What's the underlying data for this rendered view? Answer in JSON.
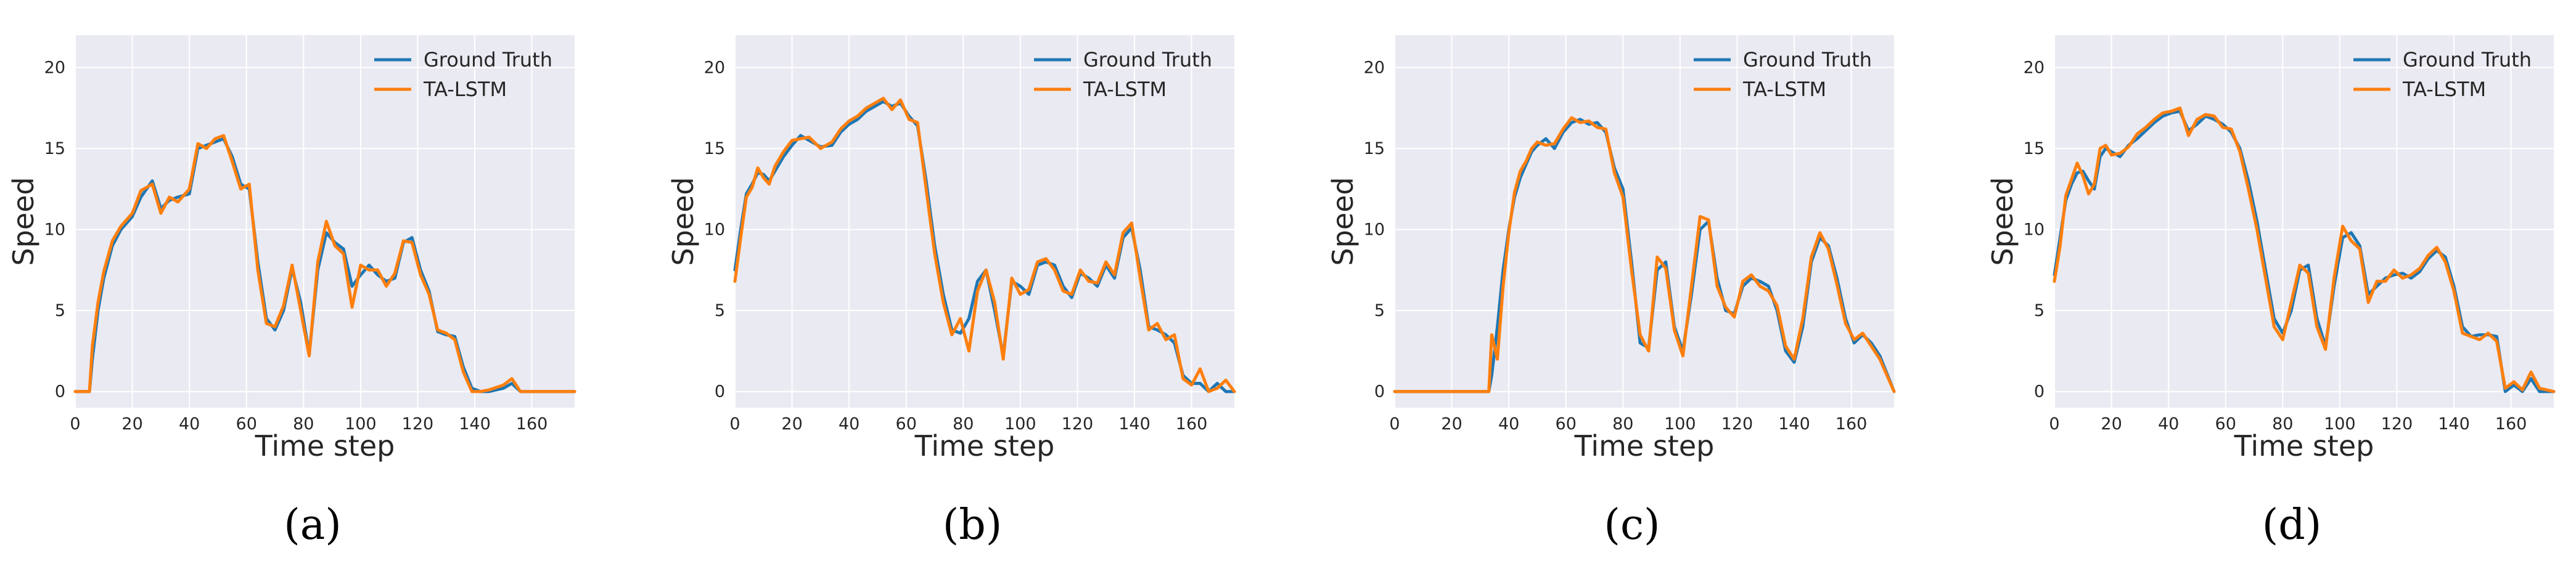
{
  "colors": {
    "ground_truth": "#1f77b4",
    "prediction": "#ff7f0e",
    "plot_bg": "#eaeaf2",
    "grid": "#ffffff"
  },
  "chart_data": [
    {
      "panel": "(a)",
      "type": "line",
      "xlabel": "Time step",
      "ylabel": "Speed",
      "xlim": [
        0,
        175
      ],
      "ylim": [
        -1,
        22
      ],
      "xticks": [
        "0",
        "20",
        "40",
        "60",
        "80",
        "100",
        "120",
        "140",
        "160"
      ],
      "yticks": [
        "0",
        "5",
        "10",
        "15",
        "20"
      ],
      "grid": true,
      "legend": "top-right",
      "series": [
        {
          "name": "Ground Truth",
          "x": [
            0,
            5,
            6,
            8,
            10,
            13,
            16,
            20,
            23,
            27,
            30,
            33,
            36,
            40,
            43,
            46,
            49,
            52,
            55,
            58,
            61,
            64,
            67,
            70,
            73,
            76,
            79,
            82,
            85,
            88,
            91,
            94,
            97,
            100,
            103,
            106,
            109,
            112,
            115,
            118,
            121,
            124,
            127,
            130,
            133,
            136,
            139,
            142,
            145,
            150,
            153,
            156,
            160,
            165,
            170,
            175
          ],
          "y": [
            0,
            0,
            2,
            5,
            7,
            9,
            10,
            10.8,
            12,
            13,
            11.3,
            11.8,
            12,
            12.2,
            15,
            15.2,
            15.4,
            15.6,
            14.5,
            12.8,
            12.5,
            8,
            4.5,
            3.8,
            5,
            7.6,
            5.5,
            2.3,
            7.5,
            9.8,
            9.2,
            8.8,
            6.5,
            7.2,
            7.8,
            7.2,
            6.8,
            7,
            9.2,
            9.5,
            7.5,
            6.2,
            3.7,
            3.5,
            3.4,
            1.5,
            0.2,
            0,
            0,
            0.2,
            0.5,
            0,
            0,
            0,
            0,
            0
          ]
        },
        {
          "name": "TA-LSTM",
          "x": [
            0,
            5,
            6,
            8,
            10,
            13,
            16,
            20,
            23,
            27,
            30,
            33,
            36,
            40,
            43,
            46,
            49,
            52,
            55,
            58,
            61,
            64,
            67,
            70,
            73,
            76,
            79,
            82,
            85,
            88,
            91,
            94,
            97,
            100,
            103,
            106,
            109,
            112,
            115,
            118,
            121,
            124,
            127,
            130,
            133,
            136,
            139,
            142,
            145,
            150,
            153,
            156,
            160,
            165,
            170,
            175
          ],
          "y": [
            0,
            0,
            2.8,
            5.5,
            7.4,
            9.3,
            10.2,
            11,
            12.4,
            12.8,
            11,
            12,
            11.7,
            12.5,
            15.3,
            15,
            15.6,
            15.8,
            14.2,
            12.5,
            12.8,
            7.5,
            4.2,
            4,
            5.3,
            7.8,
            5,
            2.2,
            8,
            10.5,
            9,
            8.5,
            5.2,
            7.8,
            7.5,
            7.5,
            6.5,
            7.3,
            9.3,
            9.2,
            7.2,
            6,
            3.8,
            3.6,
            3.2,
            1.2,
            0,
            0,
            0.1,
            0.4,
            0.8,
            0,
            0,
            0,
            0,
            0
          ]
        }
      ]
    },
    {
      "panel": "(b)",
      "type": "line",
      "xlabel": "Time step",
      "ylabel": "Speed",
      "xlim": [
        0,
        175
      ],
      "ylim": [
        -1,
        22
      ],
      "xticks": [
        "0",
        "20",
        "40",
        "60",
        "80",
        "100",
        "120",
        "140",
        "160"
      ],
      "yticks": [
        "0",
        "5",
        "10",
        "15",
        "20"
      ],
      "grid": true,
      "legend": "top-right",
      "series": [
        {
          "name": "Ground Truth",
          "x": [
            0,
            2,
            4,
            6,
            8,
            10,
            12,
            14,
            17,
            20,
            23,
            26,
            30,
            34,
            37,
            40,
            43,
            46,
            49,
            52,
            55,
            58,
            61,
            64,
            67,
            70,
            73,
            76,
            79,
            82,
            85,
            88,
            91,
            94,
            97,
            100,
            103,
            106,
            109,
            112,
            115,
            118,
            121,
            124,
            127,
            130,
            133,
            136,
            139,
            142,
            145,
            148,
            151,
            154,
            157,
            160,
            163,
            166,
            169,
            172,
            175
          ],
          "y": [
            7.5,
            10,
            12.2,
            12.8,
            13.5,
            13.4,
            13,
            13.6,
            14.5,
            15.2,
            15.8,
            15.5,
            15.1,
            15.2,
            16,
            16.5,
            16.8,
            17.3,
            17.6,
            17.9,
            17.6,
            17.8,
            17,
            16.4,
            13,
            9,
            6,
            3.8,
            3.6,
            4.5,
            6.8,
            7.5,
            5,
            2.2,
            6.8,
            6.5,
            6,
            7.8,
            8,
            7.8,
            6.5,
            5.8,
            7.3,
            7,
            6.5,
            7.8,
            7,
            9.5,
            10.1,
            7.5,
            4,
            3.8,
            3.5,
            3,
            1,
            0.5,
            0.5,
            0,
            0.5,
            0,
            0
          ]
        },
        {
          "name": "TA-LSTM",
          "x": [
            0,
            2,
            4,
            6,
            8,
            10,
            12,
            14,
            17,
            20,
            23,
            26,
            30,
            34,
            37,
            40,
            43,
            46,
            49,
            52,
            55,
            58,
            61,
            64,
            67,
            70,
            73,
            76,
            79,
            82,
            85,
            88,
            91,
            94,
            97,
            100,
            103,
            106,
            109,
            112,
            115,
            118,
            121,
            124,
            127,
            130,
            133,
            136,
            139,
            142,
            145,
            148,
            151,
            154,
            157,
            160,
            163,
            166,
            169,
            172,
            175
          ],
          "y": [
            6.8,
            9.5,
            12,
            12.6,
            13.8,
            13.2,
            12.8,
            13.9,
            14.8,
            15.5,
            15.6,
            15.7,
            15,
            15.4,
            16.2,
            16.7,
            17,
            17.5,
            17.8,
            18.1,
            17.4,
            18,
            16.8,
            16.6,
            12.5,
            8.5,
            5.5,
            3.5,
            4.5,
            2.5,
            6.2,
            7.5,
            5.5,
            2,
            7,
            6,
            6.3,
            8,
            8.2,
            7.5,
            6.2,
            6,
            7.5,
            6.8,
            6.7,
            8,
            7.2,
            9.8,
            10.4,
            7,
            3.8,
            4.2,
            3.2,
            3.5,
            0.8,
            0.4,
            1.4,
            0,
            0.2,
            0.7,
            0
          ]
        }
      ]
    },
    {
      "panel": "(c)",
      "type": "line",
      "xlabel": "Time step",
      "ylabel": "Speed",
      "xlim": [
        0,
        175
      ],
      "ylim": [
        -1,
        22
      ],
      "xticks": [
        "0",
        "20",
        "40",
        "60",
        "80",
        "100",
        "120",
        "140",
        "160"
      ],
      "yticks": [
        "0",
        "5",
        "10",
        "15",
        "20"
      ],
      "grid": true,
      "legend": "top-right",
      "series": [
        {
          "name": "Ground Truth",
          "x": [
            0,
            10,
            20,
            30,
            33,
            34,
            36,
            38,
            40,
            42,
            44,
            46,
            48,
            50,
            53,
            56,
            59,
            62,
            65,
            68,
            71,
            74,
            77,
            80,
            83,
            86,
            89,
            92,
            95,
            98,
            101,
            104,
            107,
            110,
            113,
            116,
            119,
            122,
            125,
            128,
            131,
            134,
            137,
            140,
            143,
            146,
            149,
            152,
            155,
            158,
            161,
            164,
            167,
            170,
            175
          ],
          "y": [
            0,
            0,
            0,
            0,
            0,
            1,
            4,
            7.5,
            10,
            12,
            13.2,
            14,
            14.8,
            15.2,
            15.6,
            15,
            16,
            16.6,
            16.8,
            16.5,
            16.6,
            16,
            13.8,
            12.5,
            8,
            3,
            2.7,
            7.5,
            8,
            4,
            2.5,
            6,
            10,
            10.5,
            7,
            5,
            4.8,
            6.5,
            7,
            6.8,
            6.5,
            5,
            2.5,
            1.8,
            4,
            8,
            9.5,
            9,
            7,
            4.5,
            3,
            3.5,
            3,
            2.2,
            0
          ]
        },
        {
          "name": "TA-LSTM",
          "x": [
            0,
            10,
            20,
            30,
            33,
            34,
            36,
            38,
            40,
            42,
            44,
            46,
            48,
            50,
            53,
            56,
            59,
            62,
            65,
            68,
            71,
            74,
            77,
            80,
            83,
            86,
            89,
            92,
            95,
            98,
            101,
            104,
            107,
            110,
            113,
            116,
            119,
            122,
            125,
            128,
            131,
            134,
            137,
            140,
            143,
            146,
            149,
            152,
            155,
            158,
            161,
            164,
            167,
            170,
            175
          ],
          "y": [
            0,
            0,
            0,
            0,
            0,
            3.5,
            2,
            6.5,
            9.8,
            12.3,
            13.6,
            14.2,
            15,
            15.4,
            15.2,
            15.3,
            16.2,
            16.9,
            16.6,
            16.7,
            16.3,
            16.2,
            13.5,
            12,
            7.5,
            3.5,
            2.5,
            8.3,
            7.6,
            3.8,
            2.2,
            6.5,
            10.8,
            10.6,
            6.5,
            5.2,
            4.6,
            6.8,
            7.2,
            6.5,
            6.2,
            5.3,
            2.8,
            2,
            4.5,
            8.3,
            9.8,
            8.8,
            6.6,
            4.2,
            3.2,
            3.6,
            2.8,
            2,
            0
          ]
        }
      ]
    },
    {
      "panel": "(d)",
      "type": "line",
      "xlabel": "Time step",
      "ylabel": "Speed",
      "xlim": [
        0,
        175
      ],
      "ylim": [
        -1,
        22
      ],
      "xticks": [
        "0",
        "20",
        "40",
        "60",
        "80",
        "100",
        "120",
        "140",
        "160"
      ],
      "yticks": [
        "0",
        "5",
        "10",
        "15",
        "20"
      ],
      "grid": true,
      "legend": "top-right",
      "series": [
        {
          "name": "Ground Truth",
          "x": [
            0,
            2,
            4,
            6,
            8,
            10,
            12,
            14,
            16,
            18,
            20,
            23,
            26,
            29,
            32,
            35,
            38,
            41,
            44,
            47,
            50,
            53,
            56,
            59,
            62,
            65,
            68,
            71,
            74,
            77,
            80,
            83,
            86,
            89,
            92,
            95,
            98,
            101,
            104,
            107,
            110,
            113,
            116,
            119,
            122,
            125,
            128,
            131,
            134,
            137,
            140,
            143,
            146,
            149,
            152,
            155,
            158,
            161,
            164,
            167,
            170,
            175
          ],
          "y": [
            7.2,
            9.5,
            11.8,
            12.8,
            13.5,
            13.6,
            13,
            12.5,
            14.5,
            15,
            14.8,
            14.5,
            15.2,
            15.6,
            16.1,
            16.6,
            17,
            17.2,
            17.3,
            16.1,
            16.5,
            17,
            16.8,
            16.5,
            16,
            15,
            13,
            10.5,
            7.5,
            4.5,
            3.6,
            5,
            7.5,
            7.8,
            4.5,
            2.8,
            6.5,
            9.5,
            9.8,
            9,
            6,
            6.5,
            7,
            7.2,
            7.3,
            7,
            7.4,
            8.2,
            8.7,
            8.3,
            6.5,
            4,
            3.4,
            3.5,
            3.5,
            3.4,
            0,
            0.4,
            0,
            0.8,
            0,
            0
          ]
        },
        {
          "name": "TA-LSTM",
          "x": [
            0,
            2,
            4,
            6,
            8,
            10,
            12,
            14,
            16,
            18,
            20,
            23,
            26,
            29,
            32,
            35,
            38,
            41,
            44,
            47,
            50,
            53,
            56,
            59,
            62,
            65,
            68,
            71,
            74,
            77,
            80,
            83,
            86,
            89,
            92,
            95,
            98,
            101,
            104,
            107,
            110,
            113,
            116,
            119,
            122,
            125,
            128,
            131,
            134,
            137,
            140,
            143,
            146,
            149,
            152,
            155,
            158,
            161,
            164,
            167,
            170,
            175
          ],
          "y": [
            6.8,
            9,
            12.1,
            13.1,
            14.1,
            13.3,
            12.2,
            12.8,
            15,
            15.2,
            14.6,
            14.7,
            15.1,
            15.9,
            16.3,
            16.8,
            17.2,
            17.3,
            17.5,
            15.8,
            16.8,
            17.1,
            17,
            16.3,
            16.2,
            14.8,
            12.5,
            10,
            7,
            4,
            3.2,
            5.5,
            7.8,
            7.3,
            4,
            2.6,
            7,
            10.2,
            9.3,
            8.8,
            5.5,
            6.8,
            6.8,
            7.5,
            7,
            7.2,
            7.6,
            8.4,
            8.9,
            8,
            6.2,
            3.6,
            3.4,
            3.2,
            3.6,
            3.1,
            0.2,
            0.6,
            0.1,
            1.2,
            0.2,
            0
          ]
        }
      ]
    }
  ]
}
